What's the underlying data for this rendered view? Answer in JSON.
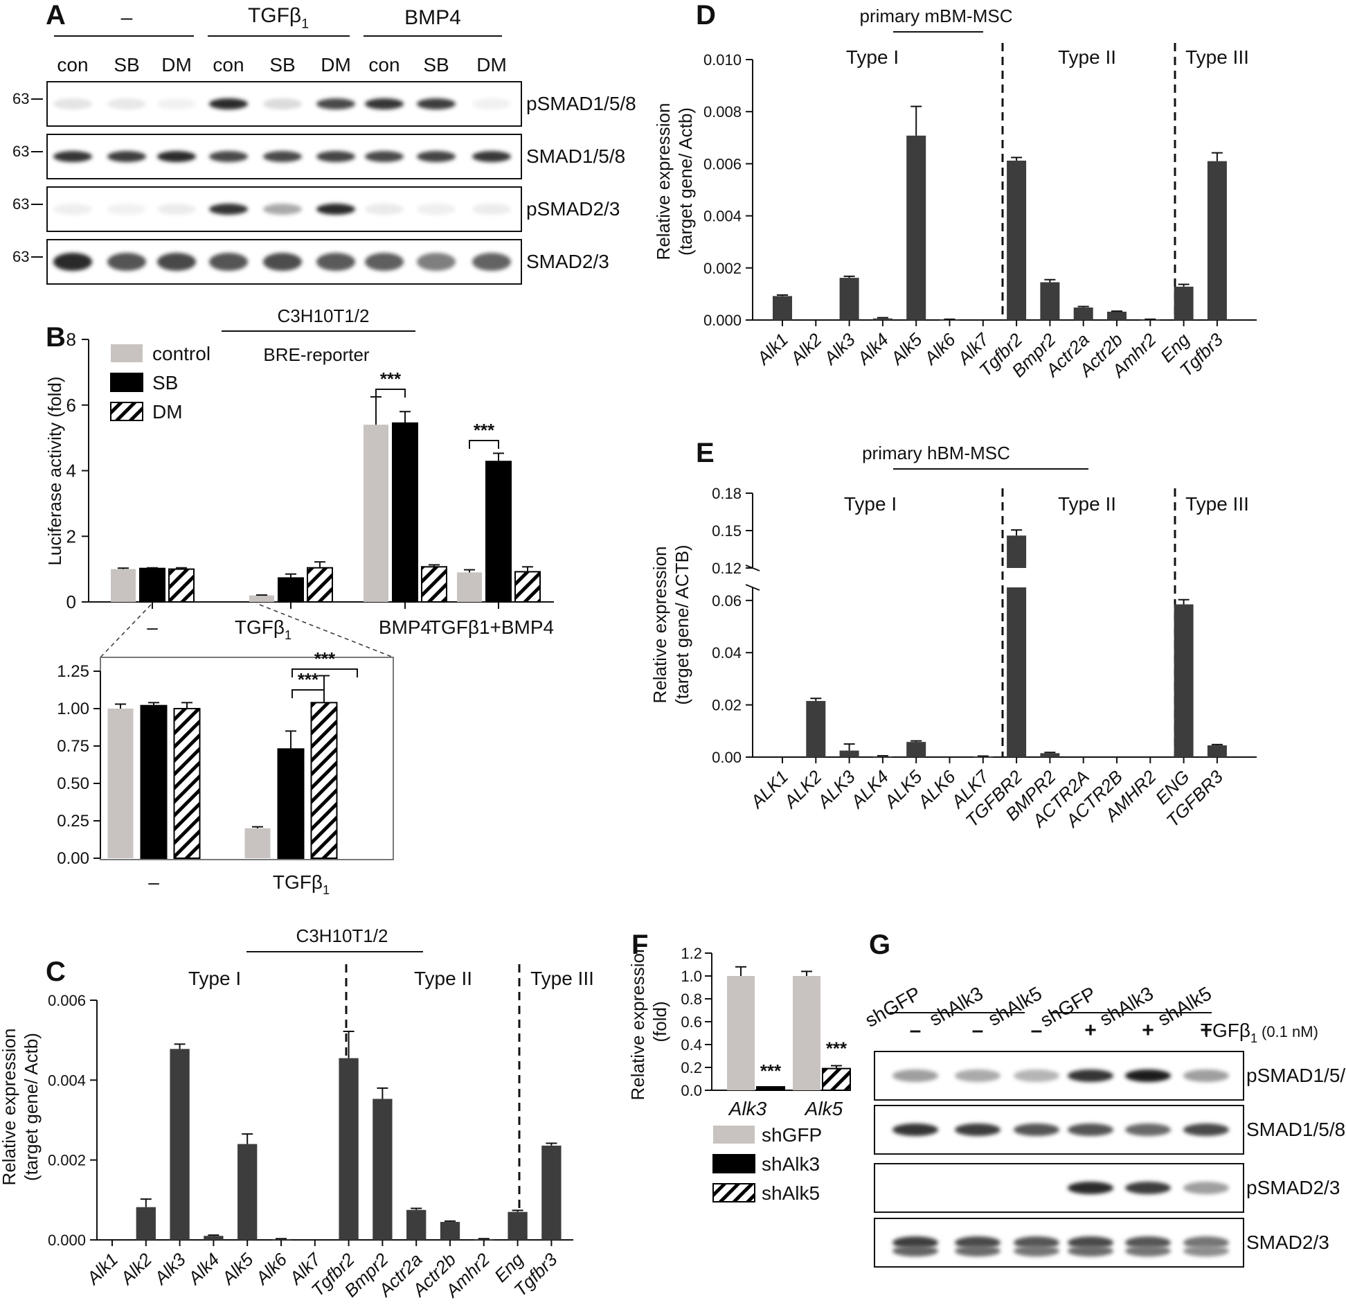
{
  "colors": {
    "dark_bar": "#3d3d3d",
    "light_bar": "#c8c3c0",
    "black_bar": "#000000"
  },
  "panelA": {
    "label": "A",
    "groups": [
      "–",
      "TGFβ1",
      "BMP4"
    ],
    "lanes": [
      "con",
      "SB",
      "DM",
      "con",
      "SB",
      "DM",
      "con",
      "SB",
      "DM"
    ],
    "blots": [
      "pSMAD1/5/8",
      "SMAD1/5/8",
      "pSMAD2/3",
      "SMAD2/3"
    ],
    "marker": "63",
    "intensity": [
      [
        0.08,
        0.06,
        0.02,
        0.95,
        0.12,
        0.8,
        0.9,
        0.85,
        0.02
      ],
      [
        0.9,
        0.85,
        0.95,
        0.8,
        0.8,
        0.82,
        0.8,
        0.82,
        0.88
      ],
      [
        0.03,
        0.02,
        0.04,
        0.9,
        0.35,
        0.95,
        0.05,
        0.03,
        0.04
      ],
      [
        0.95,
        0.75,
        0.8,
        0.75,
        0.78,
        0.72,
        0.7,
        0.55,
        0.68
      ]
    ]
  },
  "panelB": {
    "label": "B",
    "header1": "C3H10T1/2",
    "header2": "BRE-reporter",
    "ylabel": "Luciferase activity (fold)",
    "legend": [
      "control",
      "SB",
      "DM"
    ],
    "sig": "***"
  },
  "panelC": {
    "label": "C",
    "header": "C3H10T1/2",
    "ylabel1": "Relative expression",
    "ylabel2": "(target gene/ Actb)",
    "types": [
      "Type I",
      "Type II",
      "Type III"
    ]
  },
  "panelD": {
    "label": "D",
    "header": "primary mBM-MSC",
    "ylabel1": "Relative expression",
    "ylabel2": "(target gene/ Actb)",
    "types": [
      "Type I",
      "Type II",
      "Type III"
    ]
  },
  "panelE": {
    "label": "E",
    "header": "primary hBM-MSC",
    "ylabel1": "Relative expression",
    "ylabel2": "(target gene/ ACTB)",
    "types": [
      "Type I",
      "Type II",
      "Type III"
    ]
  },
  "panelF": {
    "label": "F",
    "ylabel1": "Relative expression",
    "ylabel2": "(fold)",
    "legend": [
      "shGFP",
      "shAlk3",
      "shAlk5"
    ],
    "sig": "***"
  },
  "panelG": {
    "label": "G",
    "lanes": [
      "shGFP",
      "shAlk3",
      "shAlk5",
      "shGFP",
      "shAlk3",
      "shAlk5"
    ],
    "treat": [
      "–",
      "–",
      "–",
      "+",
      "+",
      "+"
    ],
    "treat_label": "TGFβ1",
    "treat_conc": "(0.1 nM)",
    "blots": [
      "pSMAD1/5/8",
      "SMAD1/5/8",
      "pSMAD2/3",
      "SMAD2/3"
    ],
    "intensity": [
      [
        0.4,
        0.35,
        0.3,
        0.9,
        1.0,
        0.4
      ],
      [
        0.9,
        0.85,
        0.75,
        0.75,
        0.65,
        0.8
      ],
      [
        0.0,
        0.0,
        0.0,
        0.95,
        0.85,
        0.4
      ],
      [
        0.85,
        0.8,
        0.75,
        0.8,
        0.75,
        0.6
      ]
    ]
  },
  "chart_data": [
    {
      "panel": "B",
      "type": "bar",
      "categories": [
        "–",
        "TGFβ1",
        "BMP4",
        "TGFβ1+BMP4"
      ],
      "series": [
        {
          "name": "control",
          "values": [
            1.0,
            0.2,
            5.4,
            0.9
          ],
          "errors": [
            0.03,
            0.01,
            0.85,
            0.08
          ]
        },
        {
          "name": "SB",
          "values": [
            1.02,
            0.73,
            5.45,
            4.28
          ],
          "errors": [
            0.02,
            0.12,
            0.35,
            0.25
          ]
        },
        {
          "name": "DM",
          "values": [
            1.0,
            1.04,
            1.07,
            0.92
          ],
          "errors": [
            0.04,
            0.18,
            0.06,
            0.15
          ]
        }
      ],
      "ylim": [
        0,
        8
      ],
      "yticks": [
        0,
        2,
        4,
        6,
        8
      ],
      "ylabel": "Luciferase activity (fold)"
    },
    {
      "panel": "B-inset",
      "type": "bar",
      "categories": [
        "–",
        "TGFβ1"
      ],
      "series": [
        {
          "name": "control",
          "values": [
            1.0,
            0.2
          ],
          "errors": [
            0.03,
            0.01
          ]
        },
        {
          "name": "SB",
          "values": [
            1.02,
            0.73
          ],
          "errors": [
            0.02,
            0.12
          ]
        },
        {
          "name": "DM",
          "values": [
            1.0,
            1.04
          ],
          "errors": [
            0.04,
            0.18
          ]
        }
      ],
      "ylim": [
        0,
        1.25
      ],
      "yticks": [
        "0.00",
        "0.25",
        "0.50",
        "0.75",
        "1.00",
        "1.25"
      ]
    },
    {
      "panel": "C",
      "type": "bar",
      "categories": [
        "Alk1",
        "Alk2",
        "Alk3",
        "Alk4",
        "Alk5",
        "Alk6",
        "Alk7",
        "Tgfbr2",
        "Bmpr2",
        "Actr2a",
        "Actr2b",
        "Amhr2",
        "Eng",
        "Tgfbr3"
      ],
      "values": [
        0.0,
        0.00082,
        0.00478,
        0.0001,
        0.0024,
        2e-05,
        0.0,
        0.00455,
        0.00353,
        0.00075,
        0.00045,
        2e-05,
        0.0007,
        0.00236
      ],
      "errors": [
        0,
        0.0002,
        0.00012,
        2e-05,
        0.00025,
        1e-05,
        0,
        0.00067,
        0.00027,
        4e-05,
        2e-05,
        1e-05,
        4e-05,
        6e-05
      ],
      "ylim": [
        0,
        0.006
      ],
      "yticks": [
        "0.000",
        "0.002",
        "0.004",
        "0.006"
      ],
      "ylabel": "Relative expression (target gene/ Actb)"
    },
    {
      "panel": "D",
      "type": "bar",
      "categories": [
        "Alk1",
        "Alk2",
        "Alk3",
        "Alk4",
        "Alk5",
        "Alk6",
        "Alk7",
        "Tgfbr2",
        "Bmpr2",
        "Actr2a",
        "Actr2b",
        "Amhr2",
        "Eng",
        "Tgfbr3"
      ],
      "values": [
        0.00092,
        0.0,
        0.00162,
        6e-05,
        0.00708,
        2e-05,
        0.0,
        0.00612,
        0.00145,
        0.00048,
        0.00032,
        2e-05,
        0.00128,
        0.0061
      ],
      "errors": [
        4e-05,
        0,
        6e-05,
        3e-05,
        0.00112,
        1e-05,
        0,
        0.00012,
        0.0001,
        4e-05,
        2e-05,
        1e-05,
        9e-05,
        0.00032
      ],
      "ylim": [
        0,
        0.01
      ],
      "yticks": [
        "0.000",
        "0.002",
        "0.004",
        "0.006",
        "0.008",
        "0.010"
      ],
      "ylabel": "Relative expression (target gene/ Actb)"
    },
    {
      "panel": "E",
      "type": "bar",
      "categories": [
        "ALK1",
        "ALK2",
        "ALK3",
        "ALK4",
        "ALK5",
        "ALK6",
        "ALK7",
        "TGFBR2",
        "BMPR2",
        "ACTR2A",
        "ACTR2B",
        "AMHR2",
        "ENG",
        "TGFBR3"
      ],
      "values": [
        0.0,
        0.0215,
        0.0025,
        0.0003,
        0.0058,
        0.0,
        0.0002,
        0.146,
        0.0015,
        0.0,
        0.0,
        0.0,
        0.0585,
        0.0045
      ],
      "errors": [
        0,
        0.001,
        0.0025,
        0.0002,
        0.0004,
        0,
        0.0002,
        0.0045,
        0.0003,
        0,
        0,
        0,
        0.0018,
        0.0003
      ],
      "ylim": [
        0,
        0.18
      ],
      "ybreak": [
        0.065,
        0.12
      ],
      "yticks": [
        "0.00",
        "0.02",
        "0.04",
        "0.06",
        "0.12",
        "0.15",
        "0.18"
      ],
      "ylabel": "Relative expression (target gene/ ACTB)"
    },
    {
      "panel": "F",
      "type": "bar",
      "categories": [
        "Alk3",
        "Alk5"
      ],
      "series": [
        {
          "name": "shGFP",
          "values": [
            1.0,
            1.0
          ],
          "errors": [
            0.08,
            0.04
          ]
        },
        {
          "name": "shAlk3",
          "values": [
            0.03,
            null
          ],
          "errors": [
            0.005,
            null
          ]
        },
        {
          "name": "shAlk5",
          "values": [
            null,
            0.19
          ],
          "errors": [
            null,
            0.025
          ]
        }
      ],
      "ylim": [
        0,
        1.2
      ],
      "yticks": [
        "0.0",
        "0.2",
        "0.4",
        "0.6",
        "0.8",
        "1.0",
        "1.2"
      ],
      "ylabel": "Relative expression (fold)"
    }
  ]
}
